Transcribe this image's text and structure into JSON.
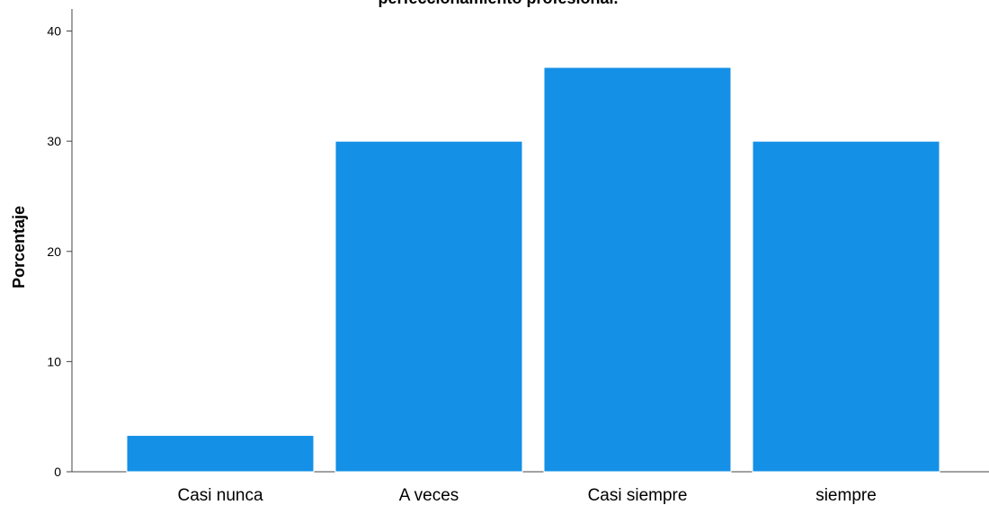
{
  "chart_data": {
    "type": "bar",
    "title": "perfeccionamiento profesional.",
    "xlabel": "",
    "ylabel": "Porcentaje",
    "categories": [
      "Casi nunca",
      "A veces",
      "Casi siempre",
      "siempre"
    ],
    "values": [
      3.3,
      30.0,
      36.7,
      30.0
    ],
    "ylim": [
      0,
      42
    ],
    "yticks": [
      0,
      10,
      20,
      30,
      40
    ],
    "bar_color": "#1490e6",
    "grid": false
  }
}
